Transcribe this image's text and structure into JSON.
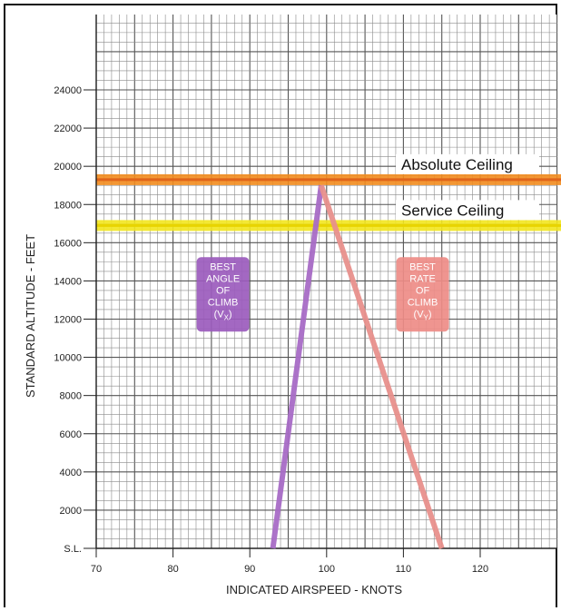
{
  "chart_data": {
    "type": "line",
    "title": "",
    "xlabel": "INDICATED AIRSPEED  -  KNOTS",
    "ylabel": "STANDARD ALTITUDE  -  FEET",
    "xlim": [
      70,
      130
    ],
    "ylim": [
      0,
      26000
    ],
    "x_ticks": [
      {
        "value": 70,
        "label": "70"
      },
      {
        "value": 80,
        "label": "80"
      },
      {
        "value": 90,
        "label": "90"
      },
      {
        "value": 100,
        "label": "100"
      },
      {
        "value": 110,
        "label": "110"
      },
      {
        "value": 120,
        "label": "120"
      }
    ],
    "y_ticks": [
      {
        "value": 0,
        "label": "S.L."
      },
      {
        "value": 2000,
        "label": "2000"
      },
      {
        "value": 4000,
        "label": "4000"
      },
      {
        "value": 6000,
        "label": "6000"
      },
      {
        "value": 8000,
        "label": "8000"
      },
      {
        "value": 10000,
        "label": "10000"
      },
      {
        "value": 12000,
        "label": "12000"
      },
      {
        "value": 14000,
        "label": "14000"
      },
      {
        "value": 16000,
        "label": "16000"
      },
      {
        "value": 18000,
        "label": "18000"
      },
      {
        "value": 20000,
        "label": "20000"
      },
      {
        "value": 22000,
        "label": "22000"
      },
      {
        "value": 24000,
        "label": "24000"
      }
    ],
    "grid": true,
    "series": [
      {
        "color": "#a86cc6",
        "x": [
          93,
          99.3
        ],
        "y": [
          0,
          19000
        ]
      },
      {
        "color": "#e8908c",
        "x": [
          99.3,
          115
        ],
        "y": [
          19000,
          0
        ]
      }
    ],
    "reference_lines": [
      {
        "label": "Absolute Ceiling",
        "y": 19300,
        "color": "#f28c1e"
      },
      {
        "label": "Service Ceiling",
        "y": 16900,
        "color": "#f2e61e"
      }
    ],
    "annotations": [
      {
        "lines": [
          "BEST",
          "ANGLE",
          "OF",
          "CLIMB"
        ],
        "subscript_label": [
          "(V",
          "X",
          ")"
        ],
        "x": 86.5,
        "y": 13200,
        "color": "#9b5bbd"
      },
      {
        "lines": [
          "BEST",
          "RATE",
          "OF",
          "CLIMB"
        ],
        "subscript_label": [
          "(V",
          "Y",
          ")"
        ],
        "x": 112.5,
        "y": 13200,
        "color": "#ee8c87"
      }
    ]
  }
}
